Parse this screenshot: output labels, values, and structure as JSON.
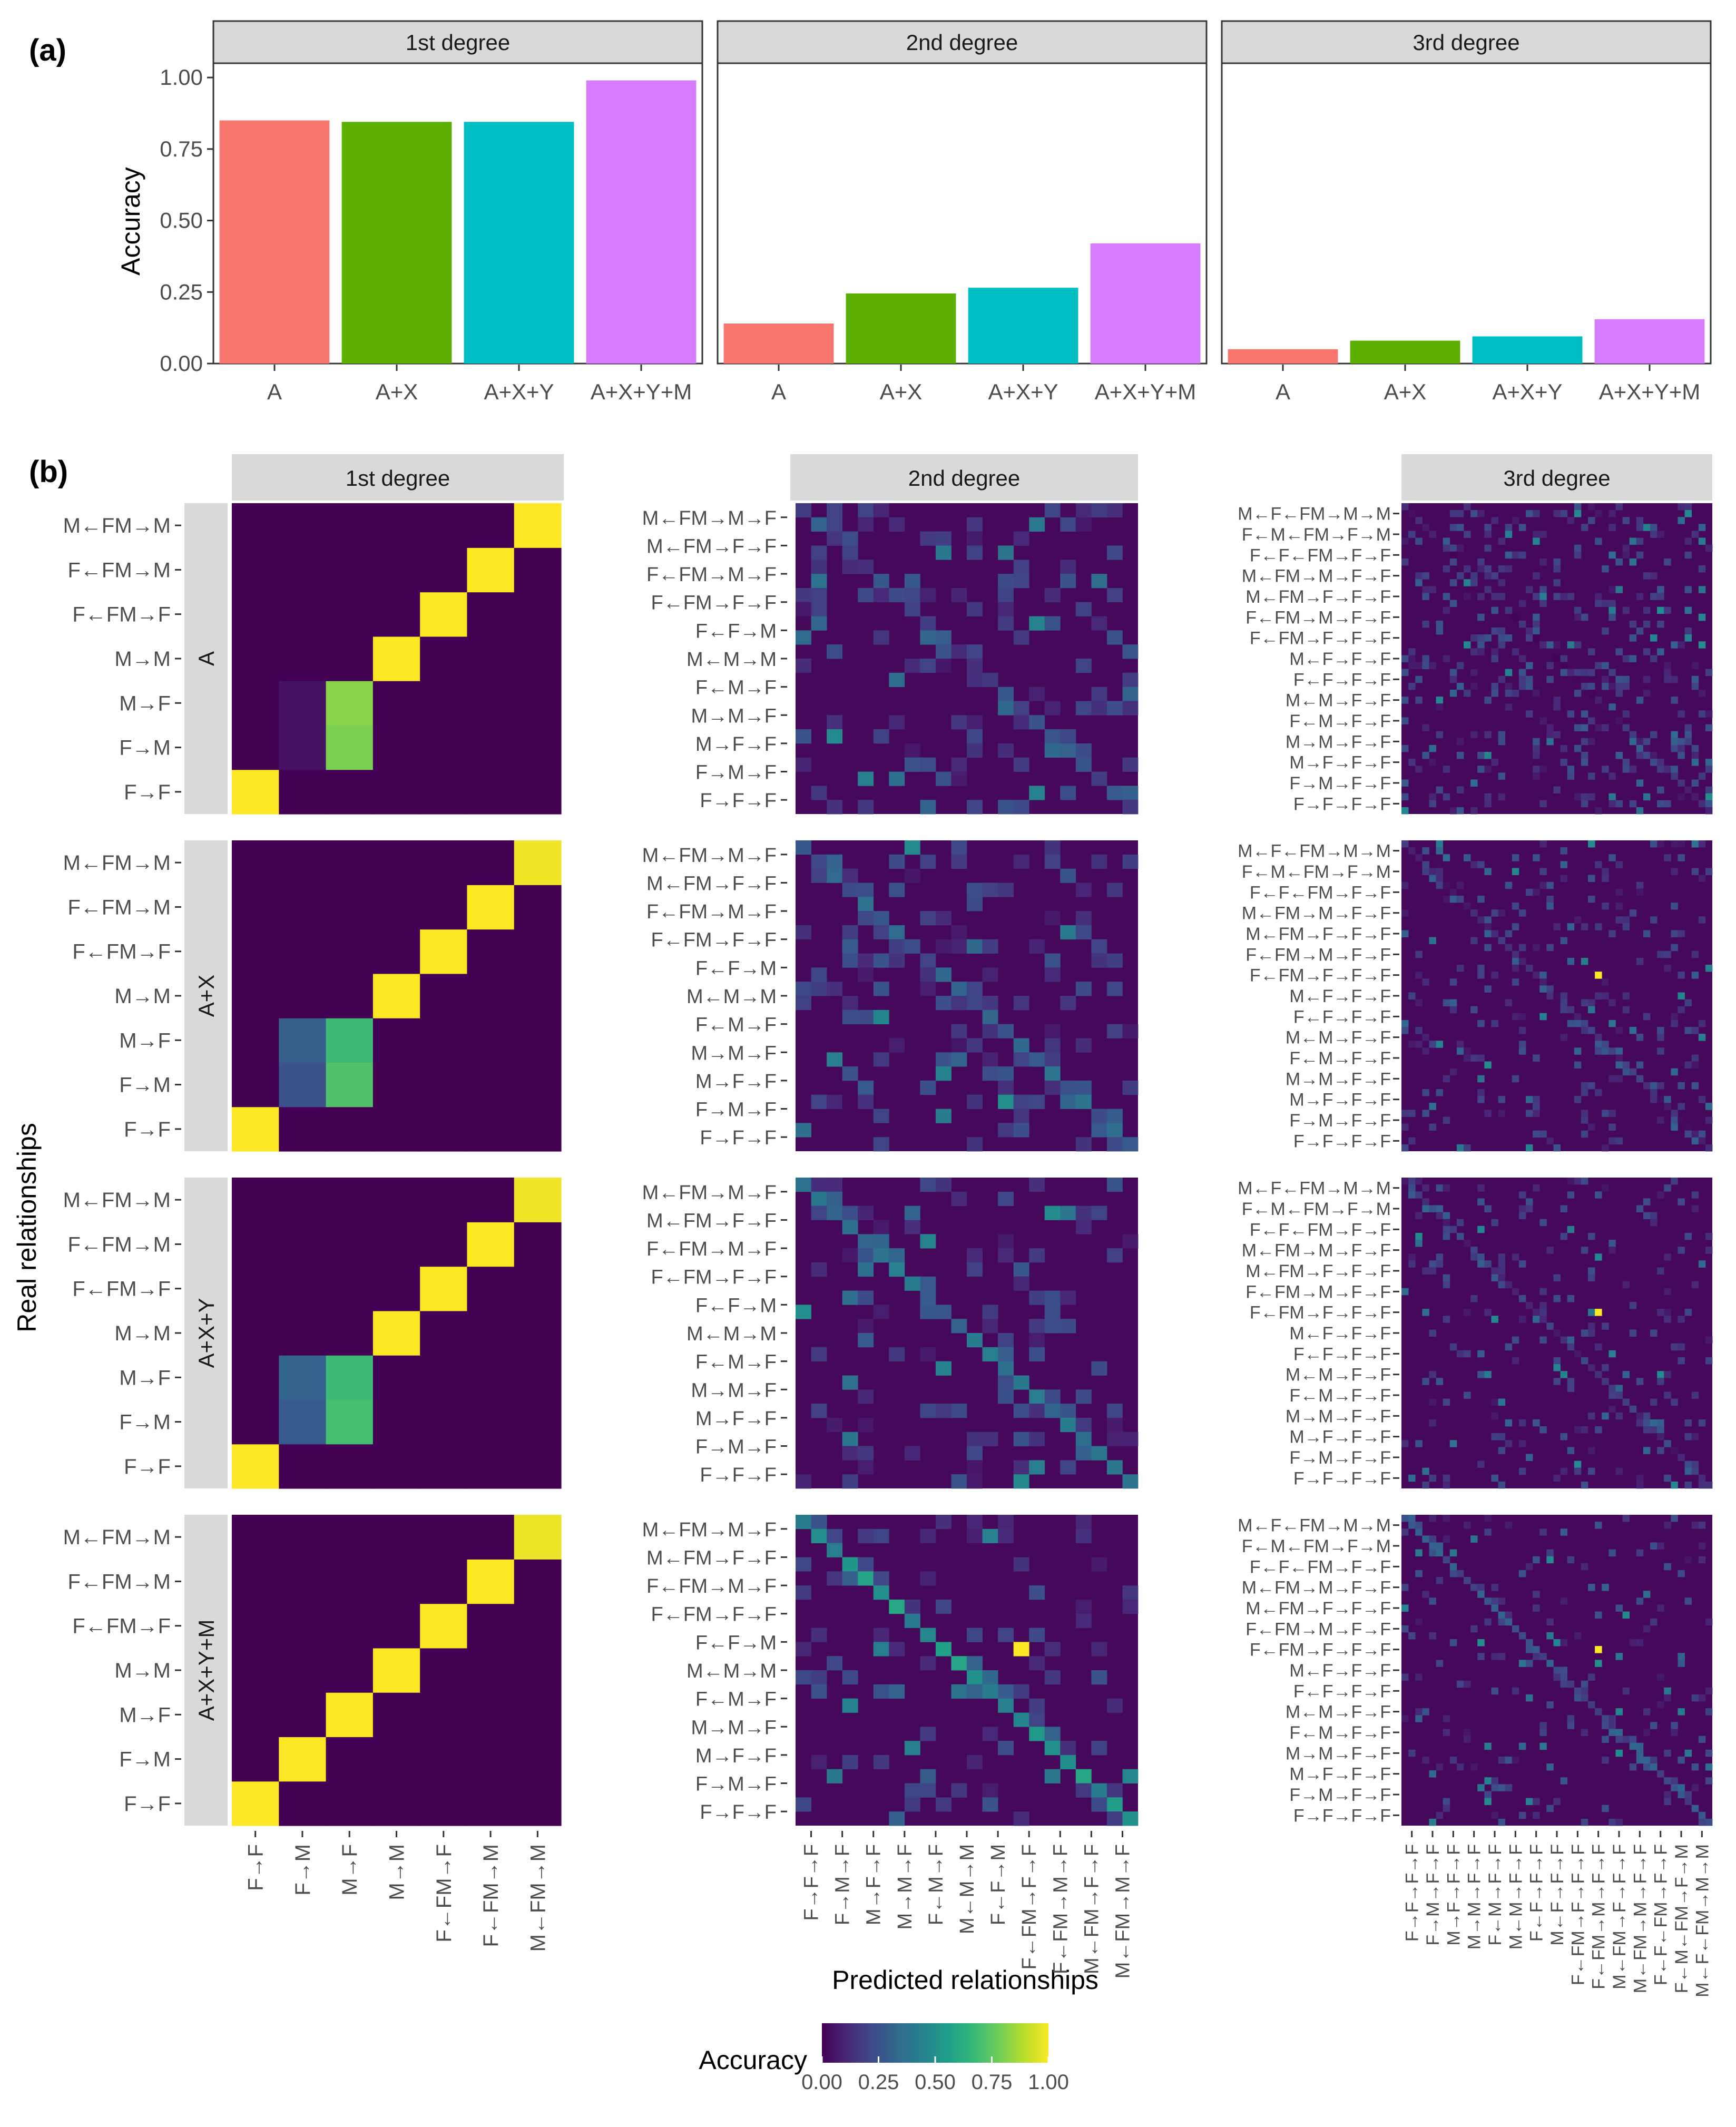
{
  "figure": {
    "panel_a_label": "(a)",
    "panel_b_label": "(b)",
    "y_axis_label_a": "Accuracy",
    "y_axis_label_b": "Real relationships",
    "x_axis_label_b": "Predicted relationships"
  },
  "colors": {
    "A": "#F8766D",
    "A+X": "#5BB000",
    "A+X+Y": "#00BFC4",
    "A+X+Y+M": "#D77BFF",
    "strip_fill": "#D9D9D9",
    "viridis": [
      "#440154",
      "#482878",
      "#3E4A89",
      "#31688E",
      "#26828E",
      "#1F9E89",
      "#35B779",
      "#6DCD59",
      "#B4DE2C",
      "#FDE725"
    ]
  },
  "chart_data": [
    {
      "id": "accuracy_bars",
      "type": "bar",
      "facets": [
        "1st degree",
        "2nd degree",
        "3rd degree"
      ],
      "categories": [
        "A",
        "A+X",
        "A+X+Y",
        "A+X+Y+M"
      ],
      "values": [
        [
          0.85,
          0.845,
          0.845,
          0.99
        ],
        [
          0.14,
          0.245,
          0.265,
          0.42
        ],
        [
          0.05,
          0.08,
          0.095,
          0.155
        ]
      ],
      "ylabel": "Accuracy",
      "ylim": [
        0,
        1.05
      ],
      "yticks": [
        "0.00",
        "0.25",
        "0.50",
        "0.75",
        "1.00"
      ]
    },
    {
      "id": "confusion_heatmaps",
      "type": "heatmap",
      "facets": [
        "1st degree",
        "2nd degree",
        "3rd degree"
      ],
      "models": [
        "A",
        "A+X",
        "A+X+Y",
        "A+X+Y+M"
      ],
      "xlabel": "Predicted relationships",
      "ylabel": "Real relationships",
      "legend_title": "Accuracy",
      "legend_ticks": [
        "0.00",
        "0.25",
        "0.50",
        "0.75",
        "1.00"
      ],
      "first_degree": {
        "categories": [
          "F→F",
          "F→M",
          "M→F",
          "M→M",
          "F←FM→F",
          "F←FM→M",
          "M←FM→M"
        ],
        "grids": [
          [
            [
              1.0,
              0,
              0,
              0,
              0,
              0,
              0
            ],
            [
              0,
              0.05,
              0.8,
              0,
              0,
              0,
              0
            ],
            [
              0,
              0.05,
              0.82,
              0,
              0,
              0,
              0
            ],
            [
              0,
              0,
              0,
              1.0,
              0,
              0,
              0
            ],
            [
              0,
              0,
              0,
              0,
              1.0,
              0,
              0
            ],
            [
              0,
              0,
              0,
              0,
              0,
              1.0,
              0
            ],
            [
              0,
              0,
              0,
              0,
              0,
              0,
              1.0
            ]
          ],
          [
            [
              1.0,
              0,
              0,
              0,
              0,
              0,
              0
            ],
            [
              0,
              0.25,
              0.72,
              0,
              0,
              0,
              0
            ],
            [
              0,
              0.3,
              0.68,
              0,
              0,
              0,
              0
            ],
            [
              0,
              0,
              0,
              1.0,
              0,
              0,
              0
            ],
            [
              0,
              0,
              0,
              0,
              1.0,
              0,
              0
            ],
            [
              0,
              0,
              0,
              0,
              0,
              1.0,
              0
            ],
            [
              0,
              0,
              0,
              0,
              0,
              0,
              0.98
            ]
          ],
          [
            [
              1.0,
              0,
              0,
              0,
              0,
              0,
              0
            ],
            [
              0,
              0.28,
              0.7,
              0,
              0,
              0,
              0
            ],
            [
              0,
              0.32,
              0.68,
              0,
              0,
              0,
              0
            ],
            [
              0,
              0,
              0,
              1.0,
              0,
              0,
              0
            ],
            [
              0,
              0,
              0,
              0,
              1.0,
              0,
              0
            ],
            [
              0,
              0,
              0,
              0,
              0,
              1.0,
              0
            ],
            [
              0,
              0,
              0,
              0,
              0,
              0,
              0.98
            ]
          ],
          [
            [
              1.0,
              0,
              0,
              0,
              0,
              0,
              0
            ],
            [
              0,
              1.0,
              0,
              0,
              0,
              0,
              0
            ],
            [
              0,
              0,
              1.0,
              0,
              0,
              0,
              0
            ],
            [
              0,
              0,
              0,
              1.0,
              0,
              0,
              0
            ],
            [
              0,
              0,
              0,
              0,
              1.0,
              0,
              0
            ],
            [
              0,
              0,
              0,
              0,
              0,
              1.0,
              0
            ],
            [
              0,
              0,
              0,
              0,
              0,
              0,
              0.97
            ]
          ]
        ]
      },
      "second_degree": {
        "x_tick_labels": [
          "F→F→F",
          "F→M→F",
          "M→F→F",
          "M→M→F",
          "F←M→F",
          "M←M→M",
          "F←F→M",
          "F←FM→F→F",
          "F←FM→M→F",
          "M←FM→F→F",
          "M←FM→M→F"
        ],
        "y_tick_labels": [
          "M←FM→M→F",
          "M←FM→F→F",
          "F←FM→M→F",
          "F←FM→F→F",
          "F←F→M",
          "M←M→M",
          "F←M→F",
          "M→M→F",
          "M→F→F",
          "F→M→F",
          "F→F→F"
        ],
        "matrix_size": 22,
        "diagonal_values": [
          0.22,
          0.3,
          0.35,
          0.5
        ],
        "peak_value": 1.0
      },
      "third_degree": {
        "x_tick_labels": [
          "F→F→F→F",
          "F→M→F→F",
          "M→F→F→F",
          "M→M→F→F",
          "F←M→F→F",
          "M←M→F→F",
          "F←F→F→F",
          "M←F→F→F",
          "F←FM→F→F→F",
          "F←FM→M→F→F",
          "M←FM→F→F→F",
          "M←FM→M→F→F",
          "F←F←FM→F→F",
          "F←M←FM→F→M",
          "M←F←FM→M→M"
        ],
        "y_tick_labels_top": [
          "M←F←FM→M→M",
          "F←M←FM→F→M",
          "F←F←FM→F→F",
          "M←FM→M→F→F",
          "M←FM→F→F→F",
          "F←FM→M→F→F",
          "F←FM→F→F→F",
          "M←F→F→F",
          "F←F→F→F",
          "M←M→F→F",
          "F←M→F→F",
          "M→M→F→F",
          "M→F→F→F",
          "F→M→F→F",
          "F→F→F→F"
        ],
        "y_tick_labels": [
          "M←F←FM→M→M",
          "F←M←FM→F→M",
          "F←F←FM→F→F",
          "M←FM→M→F→F",
          "M←FM→F→F→F",
          "F←FM→M→F→F",
          "F←FM→F→F→F",
          "M←F→F→F",
          "F←F→F→F",
          "M←M→F→F",
          "F←M→F→F",
          "M→M→F→F",
          "M→F→F→F",
          "F→M→F→F",
          "F→F→F→F"
        ],
        "matrix_size": 45,
        "peak_value": 1.0
      }
    }
  ]
}
